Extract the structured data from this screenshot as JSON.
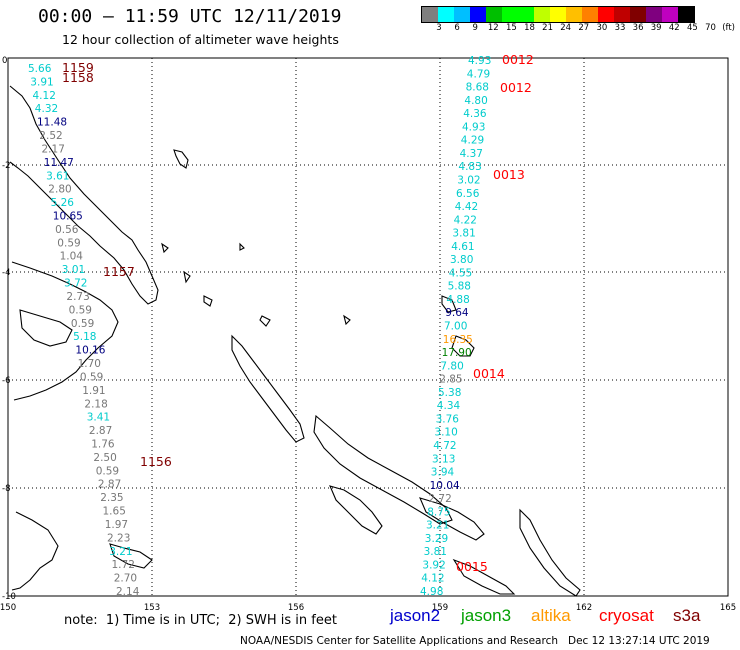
{
  "header": {
    "title": "00:00 – 11:59 UTC 12/11/2019",
    "subtitle": "12 hour collection of altimeter wave heights"
  },
  "colorbar": {
    "colors": [
      "#7f7f7f",
      "#00ffff",
      "#00bfff",
      "#0000ff",
      "#00bf00",
      "#00ff00",
      "#00ff00",
      "#bfff00",
      "#ffff00",
      "#ffbf00",
      "#ff8000",
      "#ff0000",
      "#bf0000",
      "#800000",
      "#7f007f",
      "#bf00bf",
      "#000000"
    ],
    "labels": [
      "3",
      "6",
      "9",
      "12",
      "15",
      "18",
      "21",
      "24",
      "27",
      "30",
      "33",
      "36",
      "39",
      "42",
      "45",
      "70",
      "(ft)"
    ]
  },
  "axes": {
    "x_ticks": [
      "150",
      "153",
      "156",
      "159",
      "162",
      "165"
    ],
    "y_ticks": [
      "0",
      "-2",
      "-4",
      "-6",
      "-8",
      "-10"
    ]
  },
  "tracks": {
    "cyan": "#00cccc",
    "gray": "#777777",
    "navy": "#000080",
    "green": "#008000",
    "orange": "#ff9900",
    "maroon": "#800000",
    "red": "#ff0000",
    "track1": [
      {
        "v": "5.66",
        "c": "cyan"
      },
      {
        "v": "3.91",
        "c": "cyan"
      },
      {
        "v": "4.12",
        "c": "cyan"
      },
      {
        "v": "4.32",
        "c": "cyan"
      },
      {
        "v": "11.48",
        "c": "navy"
      },
      {
        "v": "2.52",
        "c": "gray"
      },
      {
        "v": "2.17",
        "c": "gray"
      },
      {
        "v": "11.47",
        "c": "navy"
      },
      {
        "v": "3.61",
        "c": "cyan"
      },
      {
        "v": "2.80",
        "c": "gray"
      },
      {
        "v": "5.26",
        "c": "cyan"
      },
      {
        "v": "10.65",
        "c": "navy"
      },
      {
        "v": "0.56",
        "c": "gray"
      },
      {
        "v": "0.59",
        "c": "gray"
      },
      {
        "v": "1.04",
        "c": "gray"
      },
      {
        "v": "3.01",
        "c": "cyan"
      },
      {
        "v": "3.72",
        "c": "cyan"
      },
      {
        "v": "2.73",
        "c": "gray"
      },
      {
        "v": "0.59",
        "c": "gray"
      },
      {
        "v": "0.59",
        "c": "gray"
      },
      {
        "v": "5.18",
        "c": "cyan"
      },
      {
        "v": "10.16",
        "c": "navy"
      },
      {
        "v": "1.70",
        "c": "gray"
      },
      {
        "v": "0.59",
        "c": "gray"
      },
      {
        "v": "1.91",
        "c": "gray"
      },
      {
        "v": "2.18",
        "c": "gray"
      },
      {
        "v": "3.41",
        "c": "cyan"
      },
      {
        "v": "2.87",
        "c": "gray"
      },
      {
        "v": "1.76",
        "c": "gray"
      },
      {
        "v": "2.50",
        "c": "gray"
      },
      {
        "v": "0.59",
        "c": "gray"
      },
      {
        "v": "2.87",
        "c": "gray"
      },
      {
        "v": "2.35",
        "c": "gray"
      },
      {
        "v": "1.65",
        "c": "gray"
      },
      {
        "v": "1.97",
        "c": "gray"
      },
      {
        "v": "2.23",
        "c": "gray"
      },
      {
        "v": "3.21",
        "c": "cyan"
      },
      {
        "v": "1.72",
        "c": "gray"
      },
      {
        "v": "2.70",
        "c": "gray"
      },
      {
        "v": "2.14",
        "c": "gray"
      }
    ],
    "track2": [
      {
        "v": "4.93",
        "c": "cyan"
      },
      {
        "v": "4.79",
        "c": "cyan"
      },
      {
        "v": "8.68",
        "c": "cyan"
      },
      {
        "v": "4.80",
        "c": "cyan"
      },
      {
        "v": "4.36",
        "c": "cyan"
      },
      {
        "v": "4.93",
        "c": "cyan"
      },
      {
        "v": "4.29",
        "c": "cyan"
      },
      {
        "v": "4.37",
        "c": "cyan"
      },
      {
        "v": "4.83",
        "c": "cyan"
      },
      {
        "v": "3.02",
        "c": "cyan"
      },
      {
        "v": "6.56",
        "c": "cyan"
      },
      {
        "v": "4.42",
        "c": "cyan"
      },
      {
        "v": "4.22",
        "c": "cyan"
      },
      {
        "v": "3.81",
        "c": "cyan"
      },
      {
        "v": "4.61",
        "c": "cyan"
      },
      {
        "v": "3.80",
        "c": "cyan"
      },
      {
        "v": "4.55",
        "c": "cyan"
      },
      {
        "v": "5.88",
        "c": "cyan"
      },
      {
        "v": "4.88",
        "c": "cyan"
      },
      {
        "v": "9.64",
        "c": "navy"
      },
      {
        "v": "7.00",
        "c": "cyan"
      },
      {
        "v": "16.35",
        "c": "orange"
      },
      {
        "v": "17.90",
        "c": "green"
      },
      {
        "v": "7.80",
        "c": "cyan"
      },
      {
        "v": "2.85",
        "c": "gray"
      },
      {
        "v": "5.38",
        "c": "cyan"
      },
      {
        "v": "4.34",
        "c": "cyan"
      },
      {
        "v": "3.76",
        "c": "cyan"
      },
      {
        "v": "3.10",
        "c": "cyan"
      },
      {
        "v": "4.72",
        "c": "cyan"
      },
      {
        "v": "3.13",
        "c": "cyan"
      },
      {
        "v": "3.94",
        "c": "cyan"
      },
      {
        "v": "10.04",
        "c": "navy"
      },
      {
        "v": "2.72",
        "c": "gray"
      },
      {
        "v": "8.75",
        "c": "cyan"
      },
      {
        "v": "3.21",
        "c": "cyan"
      },
      {
        "v": "3.29",
        "c": "cyan"
      },
      {
        "v": "3.81",
        "c": "cyan"
      },
      {
        "v": "3.92",
        "c": "cyan"
      },
      {
        "v": "4.12",
        "c": "cyan"
      },
      {
        "v": "4.98",
        "c": "cyan"
      }
    ],
    "times": [
      {
        "t": "1159",
        "c": "maroon"
      },
      {
        "t": "1158",
        "c": "maroon"
      },
      {
        "t": "1157",
        "c": "maroon"
      },
      {
        "t": "1156",
        "c": "maroon"
      },
      {
        "t": "0012",
        "c": "red"
      },
      {
        "t": "0012",
        "c": "red"
      },
      {
        "t": "0013",
        "c": "red"
      },
      {
        "t": "0014",
        "c": "red"
      },
      {
        "t": "0015",
        "c": "red"
      }
    ]
  },
  "footer": {
    "note": "note:  1) Time is in UTC;  2) SWH is in feet",
    "legend": [
      {
        "name": "jason2",
        "color": "#0000cc"
      },
      {
        "name": "jason3",
        "color": "#00a000"
      },
      {
        "name": "altika",
        "color": "#ff9900"
      },
      {
        "name": "cryosat",
        "color": "#ff0000"
      },
      {
        "name": "s3a",
        "color": "#800000"
      }
    ],
    "credit": "NOAA/NESDIS Center for Satellite Applications and Research   Dec 12 13:27:14 UTC 2019"
  }
}
